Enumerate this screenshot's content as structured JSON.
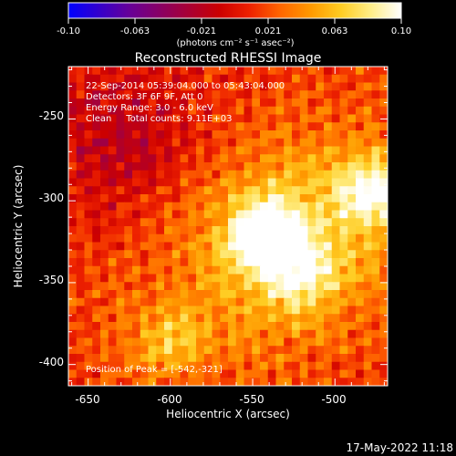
{
  "colorbar": {
    "ticks": [
      "-0.10",
      "-0.063",
      "-0.021",
      "0.021",
      "0.063",
      "0.10"
    ],
    "units": "(photons cm⁻² s⁻¹ asec⁻²)",
    "range": [
      -0.1,
      0.1
    ],
    "colormap": [
      "#0000ff",
      "#3300cc",
      "#660099",
      "#880066",
      "#aa0033",
      "#cc0000",
      "#ee2200",
      "#ff6600",
      "#ff9900",
      "#ffcc22",
      "#ffee88",
      "#ffffff"
    ]
  },
  "title": "Reconstructed RHESSI Image",
  "info": {
    "line1": "22-Sep-2014 05:39:04.000 to 05:43:04.000",
    "line2": "Detectors: 3F 6F 9F, Att 0",
    "line3": "Energy Range: 3.0 - 6.0 keV",
    "line4": "Clean     Total counts: 9.11E+03"
  },
  "peak_label": "Position of Peak = [-542,-321]",
  "footer_date": "17-May-2022 11:18",
  "chart_data": {
    "type": "heatmap",
    "title": "Reconstructed RHESSI Image",
    "xlabel": "Heliocentric X (arcsec)",
    "ylabel": "Heliocentric Y (arcsec)",
    "xlim": [
      -662,
      -468
    ],
    "ylim": [
      -413,
      -218
    ],
    "xticks": [
      -650,
      -600,
      -550,
      -500
    ],
    "yticks": [
      -250,
      -300,
      -350,
      -400
    ],
    "peak": {
      "x": -542,
      "y": -321
    },
    "bright_regions": [
      {
        "x": -542,
        "y": -321,
        "value": 0.1
      },
      {
        "x": -478,
        "y": -295,
        "value": 0.07
      },
      {
        "x": -520,
        "y": -345,
        "value": 0.05
      },
      {
        "x": -600,
        "y": -385,
        "value": 0.04
      }
    ],
    "dim_region": {
      "x": -630,
      "y": -260,
      "value": -0.03
    }
  }
}
